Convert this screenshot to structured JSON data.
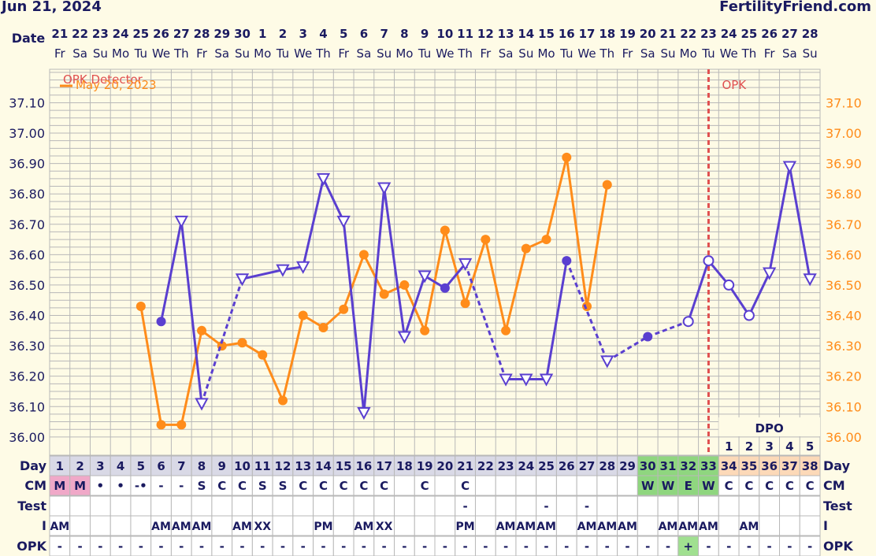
{
  "header": {
    "date": "Jun 21, 2024",
    "site": "FertilityFriend.com"
  },
  "chart_data": {
    "type": "line",
    "y_ticks": [
      "37.10",
      "37.00",
      "36.90",
      "36.80",
      "36.70",
      "36.60",
      "36.50",
      "36.40",
      "36.30",
      "36.20",
      "36.10",
      "36.00"
    ],
    "ylim": [
      35.94,
      37.21
    ],
    "dates": [
      "21",
      "22",
      "23",
      "24",
      "25",
      "26",
      "27",
      "28",
      "29",
      "30",
      "1",
      "2",
      "3",
      "4",
      "5",
      "6",
      "7",
      "8",
      "9",
      "10",
      "11",
      "12",
      "13",
      "14",
      "15",
      "16",
      "17",
      "18",
      "19",
      "20",
      "21",
      "22",
      "23",
      "24",
      "25",
      "26",
      "27",
      "28"
    ],
    "weekdays": [
      "Fr",
      "Sa",
      "Su",
      "Mo",
      "Tu",
      "We",
      "Th",
      "Fr",
      "Sa",
      "Su",
      "Mo",
      "Tu",
      "We",
      "Th",
      "Fr",
      "Sa",
      "Su",
      "Mo",
      "Tu",
      "We",
      "Th",
      "Fr",
      "Sa",
      "Su",
      "Mo",
      "Tu",
      "We",
      "Th",
      "Fr",
      "Sa",
      "Su",
      "Mo",
      "Tu",
      "We",
      "Th",
      "Fr",
      "Sa",
      "Su"
    ],
    "days": [
      "1",
      "2",
      "3",
      "4",
      "5",
      "6",
      "7",
      "8",
      "9",
      "10",
      "11",
      "12",
      "13",
      "14",
      "15",
      "16",
      "17",
      "18",
      "19",
      "20",
      "21",
      "22",
      "23",
      "24",
      "25",
      "26",
      "27",
      "28",
      "29",
      "30",
      "31",
      "32",
      "33",
      "34",
      "35",
      "36",
      "37",
      "38"
    ],
    "series": [
      {
        "name": "",
        "color": "#5a3fd0",
        "points": [
          {
            "day": 6,
            "temp": 36.38,
            "marker": "dot"
          },
          {
            "day": 7,
            "temp": 36.71,
            "marker": "tri"
          },
          {
            "day": 8,
            "temp": 36.11,
            "marker": "tri"
          },
          {
            "day": 10,
            "temp": 36.52,
            "marker": "tri"
          },
          {
            "day": 12,
            "temp": 36.55,
            "marker": "tri"
          },
          {
            "day": 13,
            "temp": 36.56,
            "marker": "tri"
          },
          {
            "day": 14,
            "temp": 36.85,
            "marker": "tri"
          },
          {
            "day": 15,
            "temp": 36.71,
            "marker": "tri"
          },
          {
            "day": 16,
            "temp": 36.08,
            "marker": "tri"
          },
          {
            "day": 17,
            "temp": 36.82,
            "marker": "tri"
          },
          {
            "day": 18,
            "temp": 36.33,
            "marker": "tri"
          },
          {
            "day": 19,
            "temp": 36.53,
            "marker": "tri"
          },
          {
            "day": 20,
            "temp": 36.49,
            "marker": "dot"
          },
          {
            "day": 21,
            "temp": 36.57,
            "marker": "tri"
          },
          {
            "day": 23,
            "temp": 36.19,
            "marker": "tri"
          },
          {
            "day": 24,
            "temp": 36.19,
            "marker": "tri"
          },
          {
            "day": 25,
            "temp": 36.19,
            "marker": "tri"
          },
          {
            "day": 26,
            "temp": 36.58,
            "marker": "dot"
          },
          {
            "day": 28,
            "temp": 36.25,
            "marker": "tri"
          },
          {
            "day": 30,
            "temp": 36.33,
            "marker": "dot"
          },
          {
            "day": 32,
            "temp": 36.38,
            "marker": "ring"
          },
          {
            "day": 33,
            "temp": 36.58,
            "marker": "ring"
          },
          {
            "day": 34,
            "temp": 36.5,
            "marker": "ring"
          },
          {
            "day": 35,
            "temp": 36.4,
            "marker": "ring"
          },
          {
            "day": 36,
            "temp": 36.54,
            "marker": "tri"
          },
          {
            "day": 37,
            "temp": 36.89,
            "marker": "tri"
          },
          {
            "day": 38,
            "temp": 36.52,
            "marker": "tri"
          }
        ],
        "dashed_from_days": [
          8,
          21,
          26,
          28,
          30
        ]
      },
      {
        "name": "May 20, 2023",
        "color": "#ff8c1a",
        "points": [
          {
            "day": 5,
            "temp": 36.43
          },
          {
            "day": 6,
            "temp": 36.04
          },
          {
            "day": 7,
            "temp": 36.04
          },
          {
            "day": 8,
            "temp": 36.35
          },
          {
            "day": 9,
            "temp": 36.3
          },
          {
            "day": 10,
            "temp": 36.31
          },
          {
            "day": 11,
            "temp": 36.27
          },
          {
            "day": 12,
            "temp": 36.12
          },
          {
            "day": 13,
            "temp": 36.4
          },
          {
            "day": 14,
            "temp": 36.36
          },
          {
            "day": 15,
            "temp": 36.42
          },
          {
            "day": 16,
            "temp": 36.6
          },
          {
            "day": 17,
            "temp": 36.47
          },
          {
            "day": 18,
            "temp": 36.5
          },
          {
            "day": 19,
            "temp": 36.35
          },
          {
            "day": 20,
            "temp": 36.68
          },
          {
            "day": 21,
            "temp": 36.44
          },
          {
            "day": 22,
            "temp": 36.65
          },
          {
            "day": 23,
            "temp": 36.35
          },
          {
            "day": 24,
            "temp": 36.62
          },
          {
            "day": 25,
            "temp": 36.65
          },
          {
            "day": 26,
            "temp": 36.92
          },
          {
            "day": 27,
            "temp": 36.43
          },
          {
            "day": 28,
            "temp": 36.83
          }
        ]
      }
    ],
    "legend_label": "OPK Detector",
    "opk_line": {
      "day": 33,
      "label": "OPK",
      "color": "#e05050"
    },
    "period_days": [
      1,
      2
    ],
    "fertile_days": [
      30,
      31,
      32,
      33
    ],
    "dpo": {
      "label": "DPO",
      "start_day": 34,
      "values": [
        "1",
        "2",
        "3",
        "4",
        "5"
      ]
    },
    "rows": [
      {
        "label": "Day"
      },
      {
        "label": "CM",
        "values": {
          "1": "M",
          "2": "M",
          "3": "•",
          "4": "•",
          "5": "-•",
          "6": "-",
          "7": "-",
          "8": "S",
          "9": "C",
          "10": "C",
          "11": "S",
          "12": "S",
          "13": "C",
          "14": "C",
          "15": "C",
          "16": "C",
          "17": "C",
          "19": "C",
          "21": "C",
          "30": "W",
          "31": "W",
          "32": "E",
          "33": "W",
          "34": "C",
          "35": "C",
          "36": "C",
          "37": "C",
          "38": "C"
        }
      },
      {
        "label": "Test",
        "values": {
          "21": "-",
          "25": "-",
          "27": "-"
        }
      },
      {
        "label": "I",
        "values": {
          "1": "AM",
          "6": "AM",
          "7": "AM",
          "8": "AM",
          "10": "AM",
          "11": "XX",
          "14": "PM",
          "16": "AM",
          "17": "XX",
          "21": "PM",
          "23": "AM",
          "24": "AM",
          "25": "AM",
          "27": "AM",
          "28": "AM",
          "29": "AM",
          "31": "AM",
          "32": "AM",
          "33": "AM",
          "35": "AM"
        }
      },
      {
        "label": "OPK",
        "values": {
          "1": "-",
          "2": "-",
          "3": "-",
          "4": "-",
          "5": "-",
          "6": "-",
          "7": "-",
          "8": "-",
          "9": "-",
          "10": "-",
          "11": "-",
          "12": "-",
          "13": "-",
          "14": "-",
          "15": "-",
          "16": "-",
          "17": "-",
          "18": "-",
          "19": "-",
          "20": "-",
          "21": "-",
          "22": "-",
          "23": "-",
          "24": "-",
          "25": "-",
          "26": "-",
          "27": "-",
          "28": "-",
          "29": "-",
          "30": "-",
          "31": "-",
          "32": "+",
          "33": "-",
          "34": "-",
          "35": "-",
          "36": "-",
          "37": "-",
          "38": "-"
        }
      }
    ],
    "y_axis_label_left": "Date",
    "colors": {
      "bg": "#fefbe6",
      "grid": "#b8b8b8",
      "navy": "#1a1a60",
      "period": "#f0a8c8",
      "fertile": "#8fd67f",
      "opk_pos": "#a0e090",
      "dpo_bg": "#fcd9b8",
      "day_bg": "#d9d9e6"
    }
  }
}
